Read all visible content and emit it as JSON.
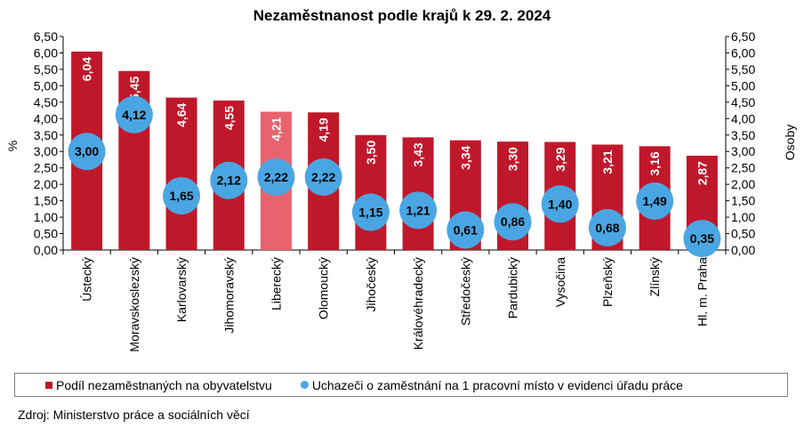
{
  "chart_data": {
    "type": "bar",
    "title": "Nezaměstnanost podle krajů k 29. 2. 2024",
    "categories": [
      "Ústecký",
      "Moravskoslezský",
      "Karlovarský",
      "Jihomoravský",
      "Liberecký",
      "Olomoucký",
      "Jihočeský",
      "Královéhradecký",
      "Středočeský",
      "Pardubický",
      "Vysočina",
      "Plzeňský",
      "Zlínský",
      "Hl. m. Praha"
    ],
    "series": [
      {
        "name": "Podíl nezaměstnaných na obyvatelstvu",
        "type": "bar",
        "color": "#c0182b",
        "highlight_color": "#e8636e",
        "highlight_index": 4,
        "values": [
          6.04,
          5.45,
          4.64,
          4.55,
          4.21,
          4.19,
          3.5,
          3.43,
          3.34,
          3.3,
          3.29,
          3.21,
          3.16,
          2.87
        ],
        "labels": [
          "6,04",
          "5,45",
          "4,64",
          "4,55",
          "4,21",
          "4,19",
          "3,50",
          "3,43",
          "3,34",
          "3,30",
          "3,29",
          "3,21",
          "3,16",
          "2,87"
        ]
      },
      {
        "name": "Uchazeči o zaměstnání na 1 pracovní místo v evidenci úřadu práce",
        "type": "scatter",
        "color": "#4aa6e3",
        "values": [
          3.0,
          4.12,
          1.65,
          2.12,
          2.22,
          2.22,
          1.15,
          1.21,
          0.61,
          0.86,
          1.4,
          0.68,
          1.49,
          0.35
        ],
        "labels": [
          "3,00",
          "4,12",
          "1,65",
          "2,12",
          "2,22",
          "2,22",
          "1,15",
          "1,21",
          "0,61",
          "0,86",
          "1,40",
          "0,68",
          "1,49",
          "0,35"
        ]
      }
    ],
    "ylabel": "%",
    "y2label": "Osoby",
    "ylim": [
      0,
      6.5
    ],
    "y2lim": [
      0,
      6.5
    ],
    "yticks": [
      "0,00",
      "0,50",
      "1,00",
      "1,50",
      "2,00",
      "2,50",
      "3,00",
      "3,50",
      "4,00",
      "4,50",
      "5,00",
      "5,50",
      "6,00",
      "6,50"
    ],
    "grid": false
  },
  "source": "Zdroj: Ministerstvo práce a sociálních věcí"
}
